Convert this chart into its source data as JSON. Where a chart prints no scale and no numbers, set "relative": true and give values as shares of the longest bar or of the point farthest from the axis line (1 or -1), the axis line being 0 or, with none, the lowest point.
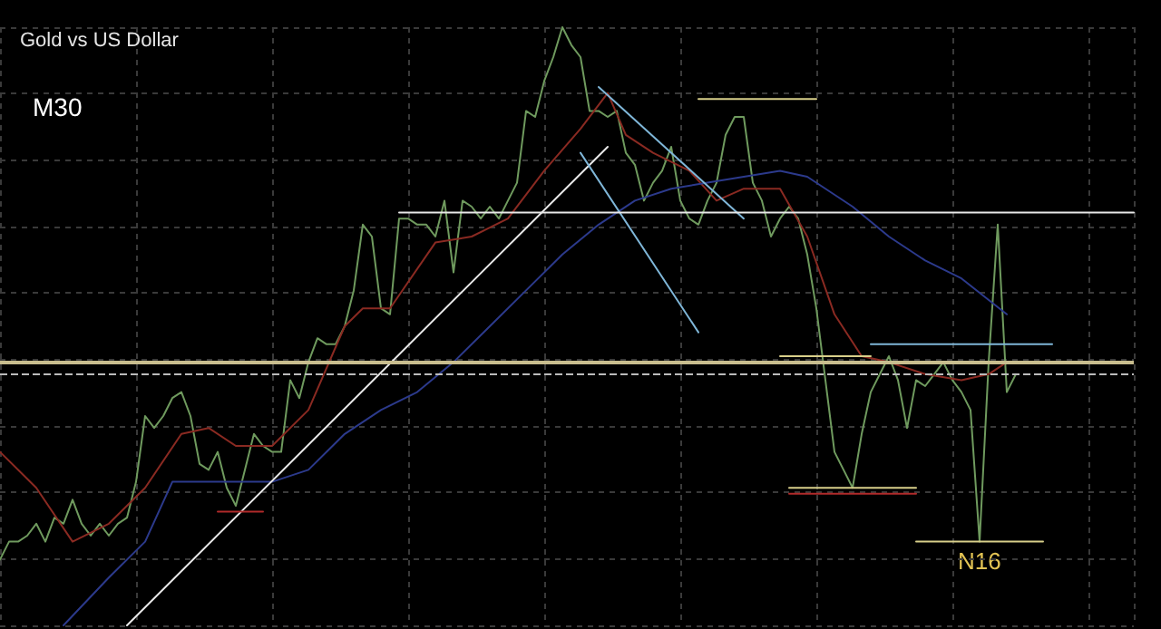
{
  "chart_data": {
    "type": "line",
    "title": "Gold vs US Dollar",
    "relative": true,
    "grid": true,
    "line_style": "solid",
    "tick_labels": false,
    "annotations": [
      "M30",
      "N16"
    ],
    "categories": [
      null,
      null,
      null,
      null,
      null,
      null,
      null,
      null,
      null,
      null,
      null,
      null,
      null,
      null,
      null,
      null,
      null,
      null,
      null,
      null,
      null,
      null,
      null,
      null,
      null,
      null,
      null,
      null,
      null,
      null,
      null,
      null,
      null,
      null,
      null,
      null,
      null,
      null,
      null,
      null,
      null,
      null,
      null,
      null,
      null,
      null,
      null,
      null,
      null,
      null,
      null,
      null,
      null,
      null,
      null,
      null,
      null,
      null,
      null,
      null,
      null,
      null,
      null,
      null,
      null,
      null,
      null,
      null,
      null,
      null,
      null,
      null,
      null,
      null,
      null,
      null,
      null,
      null,
      null,
      null,
      null,
      null,
      null,
      null,
      null,
      null,
      null,
      null,
      null,
      null,
      null,
      null,
      null,
      null,
      null,
      null,
      null,
      null,
      null,
      null,
      null,
      null,
      null,
      null,
      null,
      null,
      null,
      null,
      null,
      null,
      null,
      null,
      null,
      null,
      null,
      null,
      null,
      null,
      null,
      null,
      null,
      null,
      null,
      null,
      null,
      null
    ],
    "ref_lines": [
      {
        "axis": "y",
        "value": 0.44,
        "color": "#c8bd8e",
        "line_style": "solid"
      },
      {
        "axis": "y",
        "value": 0.42,
        "color": "#bbbbbb",
        "line_style": "dashed"
      }
    ],
    "series": [
      {
        "color": "#6f9a5e",
        "values": [
          0.11,
          0.14,
          0.14,
          0.15,
          0.17,
          0.14,
          0.18,
          0.17,
          0.21,
          0.17,
          0.15,
          0.17,
          0.15,
          0.17,
          0.18,
          0.24,
          0.35,
          0.33,
          0.35,
          0.38,
          0.39,
          0.35,
          0.27,
          0.26,
          0.29,
          0.23,
          0.2,
          0.26,
          0.32,
          0.3,
          0.29,
          0.29,
          0.41,
          0.38,
          0.44,
          0.48,
          0.47,
          0.47,
          0.5,
          0.56,
          0.67,
          0.65,
          0.53,
          0.52,
          0.68,
          0.68,
          0.67,
          0.67,
          0.65,
          0.71,
          0.59,
          0.71,
          0.7,
          0.68,
          0.7,
          0.68,
          0.71,
          0.74,
          0.86,
          0.85,
          0.91,
          0.95,
          1,
          0.97,
          0.95,
          0.86,
          0.86,
          0.85,
          0.86,
          0.79,
          0.77,
          0.71,
          0.74,
          0.76,
          0.8,
          0.71,
          0.68,
          0.67,
          0.71,
          0.74,
          0.82,
          0.85,
          0.85,
          0.74,
          0.71,
          0.65,
          0.68,
          0.7,
          0.68,
          0.62,
          0.53,
          0.41,
          0.29,
          0.26,
          0.23,
          0.32,
          0.39,
          0.42,
          0.45,
          0.41,
          0.33,
          0.41,
          0.4,
          0.42,
          0.44,
          0.41,
          0.39,
          0.36,
          0.14,
          0.44,
          0.67,
          0.39,
          0.42,
          null,
          null,
          null,
          null,
          null,
          null,
          null,
          null,
          null,
          null,
          null,
          null,
          null
        ]
      },
      {
        "color": "#8a2a22",
        "values": [
          0.29,
          null,
          null,
          null,
          0.23,
          null,
          null,
          null,
          0.14,
          null,
          null,
          null,
          0.17,
          null,
          null,
          null,
          0.23,
          null,
          null,
          null,
          0.32,
          null,
          null,
          0.33,
          null,
          null,
          0.3,
          null,
          null,
          null,
          0.3,
          null,
          null,
          null,
          0.36,
          null,
          null,
          null,
          0.5,
          null,
          0.53,
          null,
          null,
          0.53,
          null,
          null,
          null,
          null,
          0.64,
          null,
          null,
          null,
          0.65,
          null,
          null,
          null,
          0.68,
          null,
          null,
          null,
          0.76,
          null,
          null,
          null,
          0.83,
          null,
          null,
          0.89,
          null,
          0.82,
          null,
          null,
          0.79,
          null,
          null,
          null,
          0.76,
          null,
          null,
          0.71,
          null,
          null,
          0.73,
          null,
          null,
          null,
          0.73,
          null,
          null,
          0.65,
          null,
          null,
          0.52,
          null,
          null,
          0.45,
          null,
          null,
          0.44,
          null,
          null,
          null,
          0.42,
          null,
          null,
          null,
          0.41,
          null,
          null,
          0.42,
          null,
          0.44,
          null,
          null,
          null,
          null,
          null,
          null,
          null,
          null,
          null,
          null,
          null,
          null,
          null,
          null
        ]
      },
      {
        "color": "#2c3a8c",
        "values": [
          null,
          null,
          null,
          null,
          null,
          null,
          null,
          0,
          null,
          null,
          null,
          null,
          0.08,
          null,
          null,
          null,
          0.14,
          null,
          null,
          0.24,
          null,
          null,
          null,
          null,
          0.24,
          null,
          null,
          null,
          null,
          null,
          0.24,
          null,
          null,
          null,
          0.26,
          null,
          null,
          null,
          0.32,
          null,
          null,
          null,
          0.36,
          null,
          null,
          null,
          0.39,
          null,
          null,
          null,
          0.44,
          null,
          null,
          null,
          0.5,
          null,
          null,
          null,
          0.56,
          null,
          null,
          null,
          0.62,
          null,
          null,
          null,
          0.67,
          null,
          null,
          null,
          0.71,
          null,
          null,
          null,
          0.73,
          null,
          null,
          null,
          0.74,
          null,
          null,
          null,
          0.75,
          null,
          null,
          null,
          0.76,
          null,
          null,
          0.75,
          null,
          null,
          null,
          null,
          0.7,
          null,
          null,
          null,
          0.65,
          null,
          null,
          null,
          0.61,
          null,
          null,
          null,
          0.58,
          null,
          null,
          null,
          null,
          0.52,
          null,
          null,
          null,
          null,
          null,
          null,
          null,
          null,
          null,
          null,
          null,
          null,
          null,
          null
        ]
      },
      {
        "color": "#e8e8e8",
        "values": [
          null,
          null,
          null,
          null,
          null,
          null,
          null,
          null,
          null,
          null,
          null,
          null,
          null,
          null,
          0,
          null,
          null,
          null,
          null,
          null,
          null,
          null,
          null,
          null,
          null,
          null,
          null,
          null,
          null,
          null,
          null,
          null,
          null,
          null,
          null,
          null,
          null,
          null,
          null,
          null,
          null,
          null,
          null,
          null,
          null,
          null,
          null,
          null,
          null,
          null,
          null,
          null,
          null,
          null,
          null,
          null,
          null,
          null,
          null,
          null,
          null,
          null,
          null,
          null,
          null,
          null,
          null,
          0.8,
          null,
          null,
          null,
          null,
          null,
          null,
          null,
          null,
          null,
          null,
          null,
          null,
          null,
          null,
          null,
          null,
          null,
          null,
          null,
          null,
          null,
          null,
          null,
          null,
          null,
          null,
          null,
          null,
          null,
          null,
          null,
          null,
          null,
          null,
          null,
          null,
          null,
          null,
          null,
          null,
          null,
          null,
          null,
          null,
          null,
          null,
          null,
          null,
          null,
          null,
          null,
          null,
          null,
          null,
          null,
          null,
          null,
          null
        ]
      },
      {
        "color": "#7fb6d8",
        "values": [
          null,
          null,
          null,
          null,
          null,
          null,
          null,
          null,
          null,
          null,
          null,
          null,
          null,
          null,
          null,
          null,
          null,
          null,
          null,
          null,
          null,
          null,
          null,
          null,
          null,
          null,
          null,
          null,
          null,
          null,
          null,
          null,
          null,
          null,
          null,
          null,
          null,
          null,
          null,
          null,
          null,
          null,
          null,
          null,
          null,
          null,
          null,
          null,
          null,
          null,
          null,
          null,
          null,
          null,
          null,
          null,
          null,
          null,
          null,
          null,
          null,
          null,
          null,
          null,
          null,
          null,
          0.9,
          null,
          null,
          null,
          null,
          null,
          null,
          null,
          null,
          null,
          null,
          null,
          null,
          null,
          null,
          null,
          0.68,
          null,
          null,
          null,
          null,
          null,
          null,
          null,
          null,
          null,
          null,
          null,
          null,
          null,
          null,
          null,
          null,
          null,
          null,
          null,
          null,
          null,
          null,
          null,
          null,
          null,
          null,
          null,
          null,
          null,
          null,
          null,
          null,
          null,
          null,
          null,
          null,
          null,
          null,
          null,
          null,
          null,
          null,
          null
        ]
      },
      {
        "color": "#7fb6d8",
        "values": [
          null,
          null,
          null,
          null,
          null,
          null,
          null,
          null,
          null,
          null,
          null,
          null,
          null,
          null,
          null,
          null,
          null,
          null,
          null,
          null,
          null,
          null,
          null,
          null,
          null,
          null,
          null,
          null,
          null,
          null,
          null,
          null,
          null,
          null,
          null,
          null,
          null,
          null,
          null,
          null,
          null,
          null,
          null,
          null,
          null,
          null,
          null,
          null,
          null,
          null,
          null,
          null,
          null,
          null,
          null,
          null,
          null,
          null,
          null,
          null,
          null,
          null,
          null,
          null,
          0.79,
          null,
          null,
          null,
          null,
          null,
          null,
          null,
          null,
          null,
          null,
          null,
          null,
          0.49,
          null,
          null,
          null,
          null,
          null,
          null,
          null,
          null,
          null,
          null,
          null,
          null,
          null,
          null,
          null,
          null,
          null,
          null,
          null,
          null,
          null,
          null,
          null,
          null,
          null,
          null,
          null,
          null,
          null,
          null,
          null,
          null,
          null,
          null,
          null,
          null,
          null,
          null,
          null,
          null,
          null,
          null,
          null,
          null,
          null,
          null,
          null,
          null
        ]
      },
      {
        "color": "#e8e8e8",
        "values": [
          null,
          null,
          null,
          null,
          null,
          null,
          null,
          null,
          null,
          null,
          null,
          null,
          null,
          null,
          null,
          null,
          null,
          null,
          null,
          null,
          null,
          null,
          null,
          null,
          null,
          null,
          null,
          null,
          null,
          null,
          null,
          null,
          null,
          null,
          null,
          null,
          null,
          null,
          null,
          null,
          null,
          null,
          null,
          null,
          0.69,
          null,
          null,
          null,
          null,
          null,
          null,
          null,
          null,
          null,
          null,
          null,
          null,
          null,
          null,
          null,
          null,
          null,
          null,
          null,
          null,
          null,
          null,
          null,
          null,
          null,
          null,
          null,
          null,
          null,
          null,
          null,
          null,
          null,
          null,
          null,
          null,
          null,
          null,
          null,
          null,
          null,
          null,
          null,
          null,
          null,
          null,
          null,
          null,
          null,
          null,
          null,
          null,
          null,
          null,
          null,
          null,
          null,
          null,
          null,
          null,
          null,
          null,
          null,
          null,
          null,
          null,
          null,
          null,
          null,
          null,
          null,
          null,
          null,
          null,
          null,
          null,
          null,
          null,
          null,
          null,
          0.69
        ]
      },
      {
        "color": "#d8cf8a",
        "values": [
          null,
          null,
          null,
          null,
          null,
          null,
          null,
          null,
          null,
          null,
          null,
          null,
          null,
          null,
          null,
          null,
          null,
          null,
          null,
          null,
          null,
          null,
          null,
          null,
          null,
          null,
          null,
          null,
          null,
          null,
          null,
          null,
          null,
          null,
          null,
          null,
          null,
          null,
          null,
          null,
          null,
          null,
          null,
          null,
          null,
          null,
          null,
          null,
          null,
          null,
          null,
          null,
          null,
          null,
          null,
          null,
          null,
          null,
          null,
          null,
          null,
          null,
          null,
          null,
          null,
          null,
          null,
          null,
          null,
          null,
          null,
          null,
          null,
          null,
          null,
          null,
          null,
          0.88,
          null,
          null,
          null,
          null,
          null,
          null,
          null,
          null,
          null,
          null,
          null,
          null,
          0.88,
          null,
          null,
          null,
          null,
          null,
          null,
          null,
          null,
          null,
          null,
          null,
          null,
          null,
          null,
          null,
          null,
          null,
          null,
          null,
          null,
          null,
          null,
          null,
          null,
          null,
          null,
          null,
          null,
          null,
          null,
          null,
          null,
          null,
          null,
          null
        ]
      },
      {
        "color": "#d8cf8a",
        "values": [
          null,
          null,
          null,
          null,
          null,
          null,
          null,
          null,
          null,
          null,
          null,
          null,
          null,
          null,
          null,
          null,
          null,
          null,
          null,
          null,
          null,
          null,
          null,
          null,
          null,
          null,
          null,
          null,
          null,
          null,
          null,
          null,
          null,
          null,
          null,
          null,
          null,
          null,
          null,
          null,
          null,
          null,
          null,
          null,
          null,
          null,
          null,
          null,
          null,
          null,
          null,
          null,
          null,
          null,
          null,
          null,
          null,
          null,
          null,
          null,
          null,
          null,
          null,
          null,
          null,
          null,
          null,
          null,
          null,
          null,
          null,
          null,
          null,
          null,
          null,
          null,
          null,
          null,
          null,
          null,
          null,
          null,
          null,
          null,
          null,
          null,
          0.45,
          null,
          null,
          null,
          null,
          null,
          null,
          null,
          null,
          null,
          0.45,
          null,
          null,
          null,
          null,
          null,
          null,
          null,
          null,
          null,
          null,
          null,
          null,
          null,
          null,
          null,
          null,
          null,
          null,
          null,
          null,
          null,
          null,
          null,
          null,
          null,
          null,
          null,
          null,
          null
        ]
      },
      {
        "color": "#7fb6d8",
        "values": [
          null,
          null,
          null,
          null,
          null,
          null,
          null,
          null,
          null,
          null,
          null,
          null,
          null,
          null,
          null,
          null,
          null,
          null,
          null,
          null,
          null,
          null,
          null,
          null,
          null,
          null,
          null,
          null,
          null,
          null,
          null,
          null,
          null,
          null,
          null,
          null,
          null,
          null,
          null,
          null,
          null,
          null,
          null,
          null,
          null,
          null,
          null,
          null,
          null,
          null,
          null,
          null,
          null,
          null,
          null,
          null,
          null,
          null,
          null,
          null,
          null,
          null,
          null,
          null,
          null,
          null,
          null,
          null,
          null,
          null,
          null,
          null,
          null,
          null,
          null,
          null,
          null,
          null,
          null,
          null,
          null,
          null,
          null,
          null,
          null,
          null,
          null,
          null,
          null,
          null,
          null,
          null,
          null,
          null,
          null,
          null,
          0.47,
          null,
          null,
          null,
          null,
          null,
          null,
          null,
          null,
          null,
          null,
          null,
          null,
          null,
          null,
          null,
          null,
          null,
          null,
          null,
          0.47,
          null,
          null,
          null,
          null,
          null,
          null,
          null,
          null,
          null
        ]
      },
      {
        "color": "#d8cf8a",
        "values": [
          null,
          null,
          null,
          null,
          null,
          null,
          null,
          null,
          null,
          null,
          null,
          null,
          null,
          null,
          null,
          null,
          null,
          null,
          null,
          null,
          null,
          null,
          null,
          null,
          null,
          null,
          null,
          null,
          null,
          null,
          null,
          null,
          null,
          null,
          null,
          null,
          null,
          null,
          null,
          null,
          null,
          null,
          null,
          null,
          null,
          null,
          null,
          null,
          null,
          null,
          null,
          null,
          null,
          null,
          null,
          null,
          null,
          null,
          null,
          null,
          null,
          null,
          null,
          null,
          null,
          null,
          null,
          null,
          null,
          null,
          null,
          null,
          null,
          null,
          null,
          null,
          null,
          null,
          null,
          null,
          null,
          null,
          null,
          null,
          null,
          null,
          null,
          0.23,
          null,
          null,
          null,
          null,
          null,
          null,
          null,
          null,
          null,
          null,
          null,
          null,
          null,
          0.23,
          null,
          null,
          null,
          null,
          null,
          null,
          null,
          null,
          null,
          null,
          null,
          null,
          null,
          null,
          null,
          null,
          null,
          null,
          null,
          null,
          null,
          null,
          null,
          null
        ]
      },
      {
        "color": "#b02a2a",
        "values": [
          null,
          null,
          null,
          null,
          null,
          null,
          null,
          null,
          null,
          null,
          null,
          null,
          null,
          null,
          null,
          null,
          null,
          null,
          null,
          null,
          null,
          null,
          null,
          null,
          null,
          null,
          null,
          null,
          null,
          null,
          null,
          null,
          null,
          null,
          null,
          null,
          null,
          null,
          null,
          null,
          null,
          null,
          null,
          null,
          null,
          null,
          null,
          null,
          null,
          null,
          null,
          null,
          null,
          null,
          null,
          null,
          null,
          null,
          null,
          null,
          null,
          null,
          null,
          null,
          null,
          null,
          null,
          null,
          null,
          null,
          null,
          null,
          null,
          null,
          null,
          null,
          null,
          null,
          null,
          null,
          null,
          null,
          null,
          null,
          null,
          null,
          null,
          0.22,
          null,
          null,
          null,
          null,
          null,
          null,
          null,
          null,
          null,
          null,
          null,
          null,
          null,
          0.22,
          null,
          null,
          null,
          null,
          null,
          null,
          null,
          null,
          null,
          null,
          null,
          null,
          null,
          null,
          null,
          null,
          null,
          null,
          null,
          null,
          null,
          null,
          null,
          null
        ]
      },
      {
        "color": "#d8cf8a",
        "values": [
          null,
          null,
          null,
          null,
          null,
          null,
          null,
          null,
          null,
          null,
          null,
          null,
          null,
          null,
          null,
          null,
          null,
          null,
          null,
          null,
          null,
          null,
          null,
          null,
          null,
          null,
          null,
          null,
          null,
          null,
          null,
          null,
          null,
          null,
          null,
          null,
          null,
          null,
          null,
          null,
          null,
          null,
          null,
          null,
          null,
          null,
          null,
          null,
          null,
          null,
          null,
          null,
          null,
          null,
          null,
          null,
          null,
          null,
          null,
          null,
          null,
          null,
          null,
          null,
          null,
          null,
          null,
          null,
          null,
          null,
          null,
          null,
          null,
          null,
          null,
          null,
          null,
          null,
          null,
          null,
          null,
          null,
          null,
          null,
          null,
          null,
          null,
          null,
          null,
          null,
          null,
          null,
          null,
          null,
          null,
          null,
          null,
          null,
          null,
          null,
          null,
          0.14,
          null,
          null,
          null,
          null,
          null,
          null,
          null,
          null,
          null,
          null,
          null,
          null,
          null,
          0.14,
          null,
          null,
          null,
          null,
          null,
          null,
          null,
          null,
          null,
          null
        ]
      },
      {
        "color": "#b02a2a",
        "values": [
          null,
          null,
          null,
          null,
          null,
          null,
          null,
          null,
          null,
          null,
          null,
          null,
          null,
          null,
          null,
          null,
          null,
          null,
          null,
          null,
          null,
          null,
          null,
          null,
          0.19,
          null,
          null,
          null,
          null,
          0.19,
          null,
          null,
          null,
          null,
          null,
          null,
          null,
          null,
          null,
          null,
          null,
          null,
          null,
          null,
          null,
          null,
          null,
          null,
          null,
          null,
          null,
          null,
          null,
          null,
          null,
          null,
          null,
          null,
          null,
          null,
          null,
          null,
          null,
          null,
          null,
          null,
          null,
          null,
          null,
          null,
          null,
          null,
          null,
          null,
          null,
          null,
          null,
          null,
          null,
          null,
          null,
          null,
          null,
          null,
          null,
          null,
          null,
          null,
          null,
          null,
          null,
          null,
          null,
          null,
          null,
          null,
          null,
          null,
          null,
          null,
          null,
          null,
          null,
          null,
          null,
          null,
          null,
          null,
          null,
          null,
          null,
          null,
          null,
          null,
          null,
          null,
          null,
          null,
          null,
          null,
          null,
          null,
          null,
          null,
          null,
          null
        ]
      }
    ]
  }
}
